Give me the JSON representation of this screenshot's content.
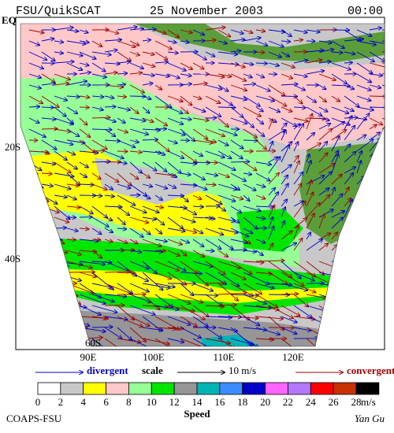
{
  "header": {
    "source": "FSU/QuikSCAT",
    "date": "25 November 2003",
    "time": "00:00"
  },
  "map": {
    "lat_labels": [
      "EQ",
      "20S",
      "40S",
      "60S"
    ],
    "lon_labels": [
      "90E",
      "100E",
      "110E",
      "120E"
    ]
  },
  "legend": {
    "divergent": "divergent",
    "scale": "scale",
    "scale_value": "10 m/s",
    "convergent": "convergent"
  },
  "colorbar": {
    "ticks": [
      0,
      2,
      4,
      6,
      8,
      10,
      12,
      14,
      16,
      18,
      20,
      22,
      24,
      26,
      28
    ],
    "unit": "m/s",
    "label": "Speed",
    "colors": [
      "#ffffff",
      "#c8c8c8",
      "#ffff00",
      "#ffc8c8",
      "#96ff96",
      "#00e600",
      "#969696",
      "#00b4b4",
      "#3c8cff",
      "#0000c8",
      "#ff64ff",
      "#b478ff",
      "#ff0000",
      "#c83200",
      "#000000"
    ]
  },
  "footer": {
    "left": "COAPS-FSU",
    "right": "Yan Gu"
  }
}
